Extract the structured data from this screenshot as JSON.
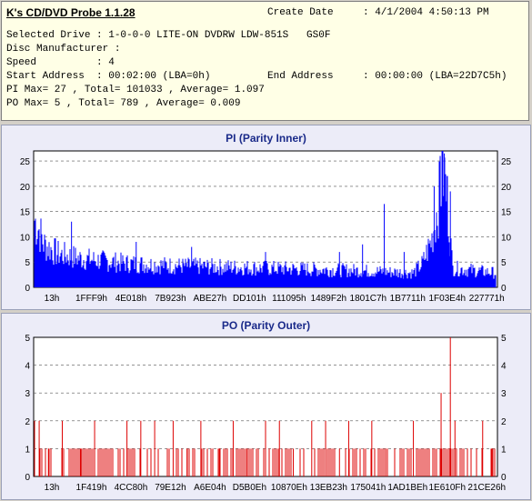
{
  "app": {
    "title": "K's CD/DVD Probe 1.1.28"
  },
  "info": {
    "create_date_label": "Create Date",
    "create_date_value": ": 4/1/2004 4:50:13 PM",
    "selected_drive_line": "Selected Drive : 1-0-0-0 LITE-ON DVDRW LDW-851S   GS0F",
    "disc_manufacturer_line": "Disc Manufacturer :",
    "speed_line": "Speed          : 4",
    "start_address_line": "Start Address  : 00:02:00 (LBA=0h)",
    "end_address_label": "End Address",
    "end_address_value": ": 00:00:00 (LBA=22D7C5h)",
    "pi_summary": "PI Max= 27 , Total= 101033 , Average= 1.097",
    "po_summary": "PO Max= 5 , Total= 789 , Average= 0.009"
  },
  "chart_data": [
    {
      "type": "bar",
      "title": "PI (Parity Inner)",
      "ylim": [
        0,
        27
      ],
      "yticks": [
        "0",
        "5",
        "10",
        "15",
        "20",
        "25"
      ],
      "x_tick_labels": [
        "13h",
        "1FFF9h",
        "4E018h",
        "7B923h",
        "ABE27h",
        "DD101h",
        "111095h",
        "1489F2h",
        "1801C7h",
        "1B7711h",
        "1F03E4h",
        "227771h"
      ],
      "grid": true,
      "color": "#0000ff",
      "profile": [
        [
          0,
          14
        ],
        [
          0.01,
          12
        ],
        [
          0.02,
          9
        ],
        [
          0.05,
          7
        ],
        [
          0.1,
          6
        ],
        [
          0.2,
          5
        ],
        [
          0.3,
          4.5
        ],
        [
          0.5,
          4
        ],
        [
          0.7,
          3.5
        ],
        [
          0.82,
          3
        ],
        [
          0.84,
          5
        ],
        [
          0.86,
          10
        ],
        [
          0.875,
          18
        ],
        [
          0.885,
          25
        ],
        [
          0.895,
          17
        ],
        [
          0.905,
          4
        ],
        [
          1.0,
          3
        ]
      ],
      "spikes": [
        [
          0.08,
          13
        ],
        [
          0.22,
          9
        ],
        [
          0.34,
          8
        ],
        [
          0.5,
          7
        ],
        [
          0.66,
          7
        ],
        [
          0.71,
          8.5
        ],
        [
          0.757,
          16.5
        ],
        [
          0.8,
          7
        ],
        [
          0.865,
          20
        ],
        [
          0.878,
          26
        ],
        [
          0.882,
          27
        ],
        [
          0.887,
          26.5
        ],
        [
          0.893,
          22
        ],
        [
          0.9,
          19
        ]
      ]
    },
    {
      "type": "bar",
      "title": "PO (Parity Outer)",
      "ylim": [
        0,
        5
      ],
      "yticks": [
        "0",
        "1",
        "2",
        "3",
        "4",
        "5"
      ],
      "x_tick_labels": [
        "13h",
        "1F419h",
        "4CC80h",
        "79E12h",
        "A6E04h",
        "D5B0Eh",
        "10870Eh",
        "13EB23h",
        "175041h",
        "1AD1BEh",
        "1E610Fh",
        "21CE26h"
      ],
      "grid": true,
      "color": "#dd0000",
      "spikes": [
        [
          0.0,
          2
        ],
        [
          0.01,
          2
        ],
        [
          0.03,
          1
        ],
        [
          0.06,
          2
        ],
        [
          0.1,
          1
        ],
        [
          0.13,
          2
        ],
        [
          0.2,
          2
        ],
        [
          0.23,
          2
        ],
        [
          0.26,
          2
        ],
        [
          0.3,
          2
        ],
        [
          0.33,
          1
        ],
        [
          0.36,
          2
        ],
        [
          0.4,
          1
        ],
        [
          0.43,
          2
        ],
        [
          0.46,
          1
        ],
        [
          0.5,
          2
        ],
        [
          0.53,
          2
        ],
        [
          0.56,
          1
        ],
        [
          0.6,
          2
        ],
        [
          0.63,
          2
        ],
        [
          0.66,
          1
        ],
        [
          0.68,
          2
        ],
        [
          0.73,
          2
        ],
        [
          0.76,
          1
        ],
        [
          0.82,
          2
        ],
        [
          0.88,
          3
        ],
        [
          0.9,
          5
        ],
        [
          0.91,
          2
        ],
        [
          0.97,
          2
        ],
        [
          0.99,
          1
        ]
      ]
    }
  ]
}
